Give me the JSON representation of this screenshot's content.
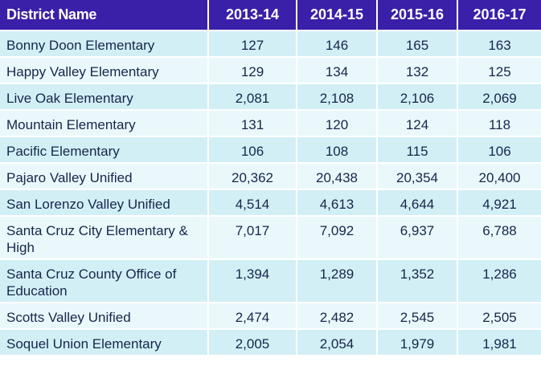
{
  "table": {
    "headers": [
      "District Name",
      "2013-14",
      "2014-15",
      "2015-16",
      "2016-17"
    ],
    "rows": [
      {
        "name": "Bonny Doon Elementary",
        "values": [
          "127",
          "146",
          "165",
          "163"
        ]
      },
      {
        "name": "Happy Valley Elementary",
        "values": [
          "129",
          "134",
          "132",
          "125"
        ]
      },
      {
        "name": "Live Oak Elementary",
        "values": [
          "2,081",
          "2,108",
          "2,106",
          "2,069"
        ]
      },
      {
        "name": "Mountain Elementary",
        "values": [
          "131",
          "120",
          "124",
          "118"
        ]
      },
      {
        "name": "Pacific Elementary",
        "values": [
          "106",
          "108",
          "115",
          "106"
        ]
      },
      {
        "name": "Pajaro Valley Unified",
        "values": [
          "20,362",
          "20,438",
          "20,354",
          "20,400"
        ]
      },
      {
        "name": "San Lorenzo Valley Unified",
        "values": [
          "4,514",
          "4,613",
          "4,644",
          "4,921"
        ]
      },
      {
        "name": "Santa Cruz City Elementary & High",
        "values": [
          "7,017",
          "7,092",
          "6,937",
          "6,788"
        ]
      },
      {
        "name": "Santa Cruz County Office of Education",
        "values": [
          "1,394",
          "1,289",
          "1,352",
          "1,286"
        ]
      },
      {
        "name": "Scotts Valley Unified",
        "values": [
          "2,474",
          "2,482",
          "2,545",
          "2,505"
        ]
      },
      {
        "name": "Soquel Union Elementary",
        "values": [
          "2,005",
          "2,054",
          "1,979",
          "1,981"
        ]
      }
    ]
  },
  "colors": {
    "header_bg": "#3a1fa8",
    "row_odd": "#d2eff6",
    "row_even": "#eaf8fb",
    "text": "#16264a"
  }
}
